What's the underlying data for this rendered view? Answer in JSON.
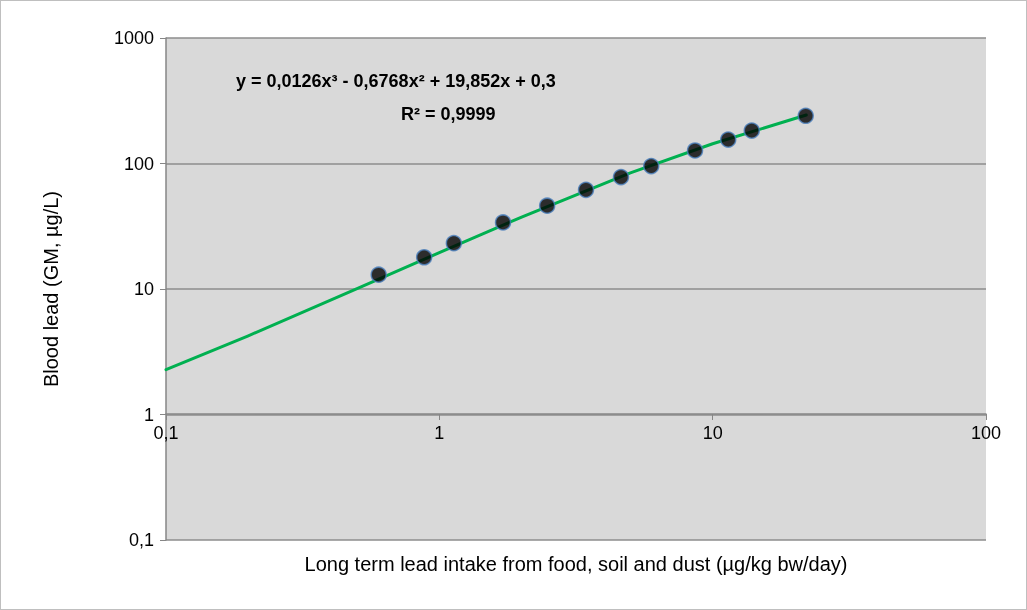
{
  "chart_data": {
    "type": "scatter",
    "xlabel": "Long term lead intake from food, soil and dust (µg/kg bw/day)",
    "ylabel": "Blood lead (GM, µg/L)",
    "annotations": [
      "y = 0,0126x³ - 0,6768x² + 19,852x + 0,3",
      "R² = 0,9999"
    ],
    "log": "xy",
    "grid": "y",
    "marker": "circle",
    "xlim": [
      0.1,
      100
    ],
    "xticks": [
      {
        "value": 0.1,
        "label": "0,1"
      },
      1,
      10,
      100
    ],
    "ylim": [
      0.1,
      1000
    ],
    "yticks": [
      {
        "value": 0.1,
        "label": "0,1"
      },
      1,
      10,
      100,
      1000
    ],
    "series": [
      {
        "color": "#000000",
        "x": [
          0.6,
          0.88,
          1.13,
          1.71,
          2.48,
          3.44,
          4.62,
          5.96,
          8.62,
          11.4,
          13.9,
          21.9
        ],
        "values": [
          13.0,
          17.9,
          23.2,
          33.9,
          46.1,
          61.7,
          78.0,
          95.3,
          127,
          155,
          183,
          240
        ]
      },
      {
        "type": "line",
        "color": "#00b050",
        "marker": "none",
        "line_style": "solid",
        "x": [
          0.1,
          0.2,
          0.5,
          1,
          2,
          5,
          10,
          22
        ],
        "values": [
          2.28,
          4.24,
          10.06,
          19.49,
          37.4,
          84.2,
          143.7,
          243.6
        ]
      }
    ]
  }
}
